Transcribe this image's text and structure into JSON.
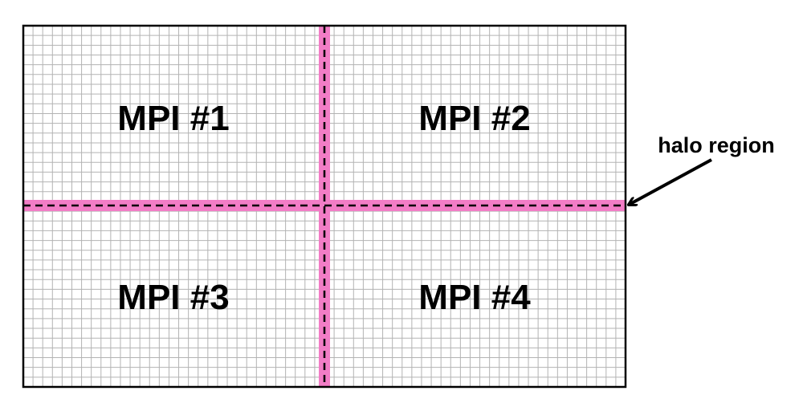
{
  "domains": [
    {
      "label": "MPI #1"
    },
    {
      "label": "MPI #2"
    },
    {
      "label": "MPI #3"
    },
    {
      "label": "MPI #4"
    }
  ],
  "callout": {
    "label": "halo region"
  },
  "colors": {
    "halo": "#f27dc6",
    "grid": "#b3b3b3",
    "border": "#000000",
    "boundary_dash": "#000000"
  },
  "grid": {
    "columns": 62,
    "rows": 37
  }
}
